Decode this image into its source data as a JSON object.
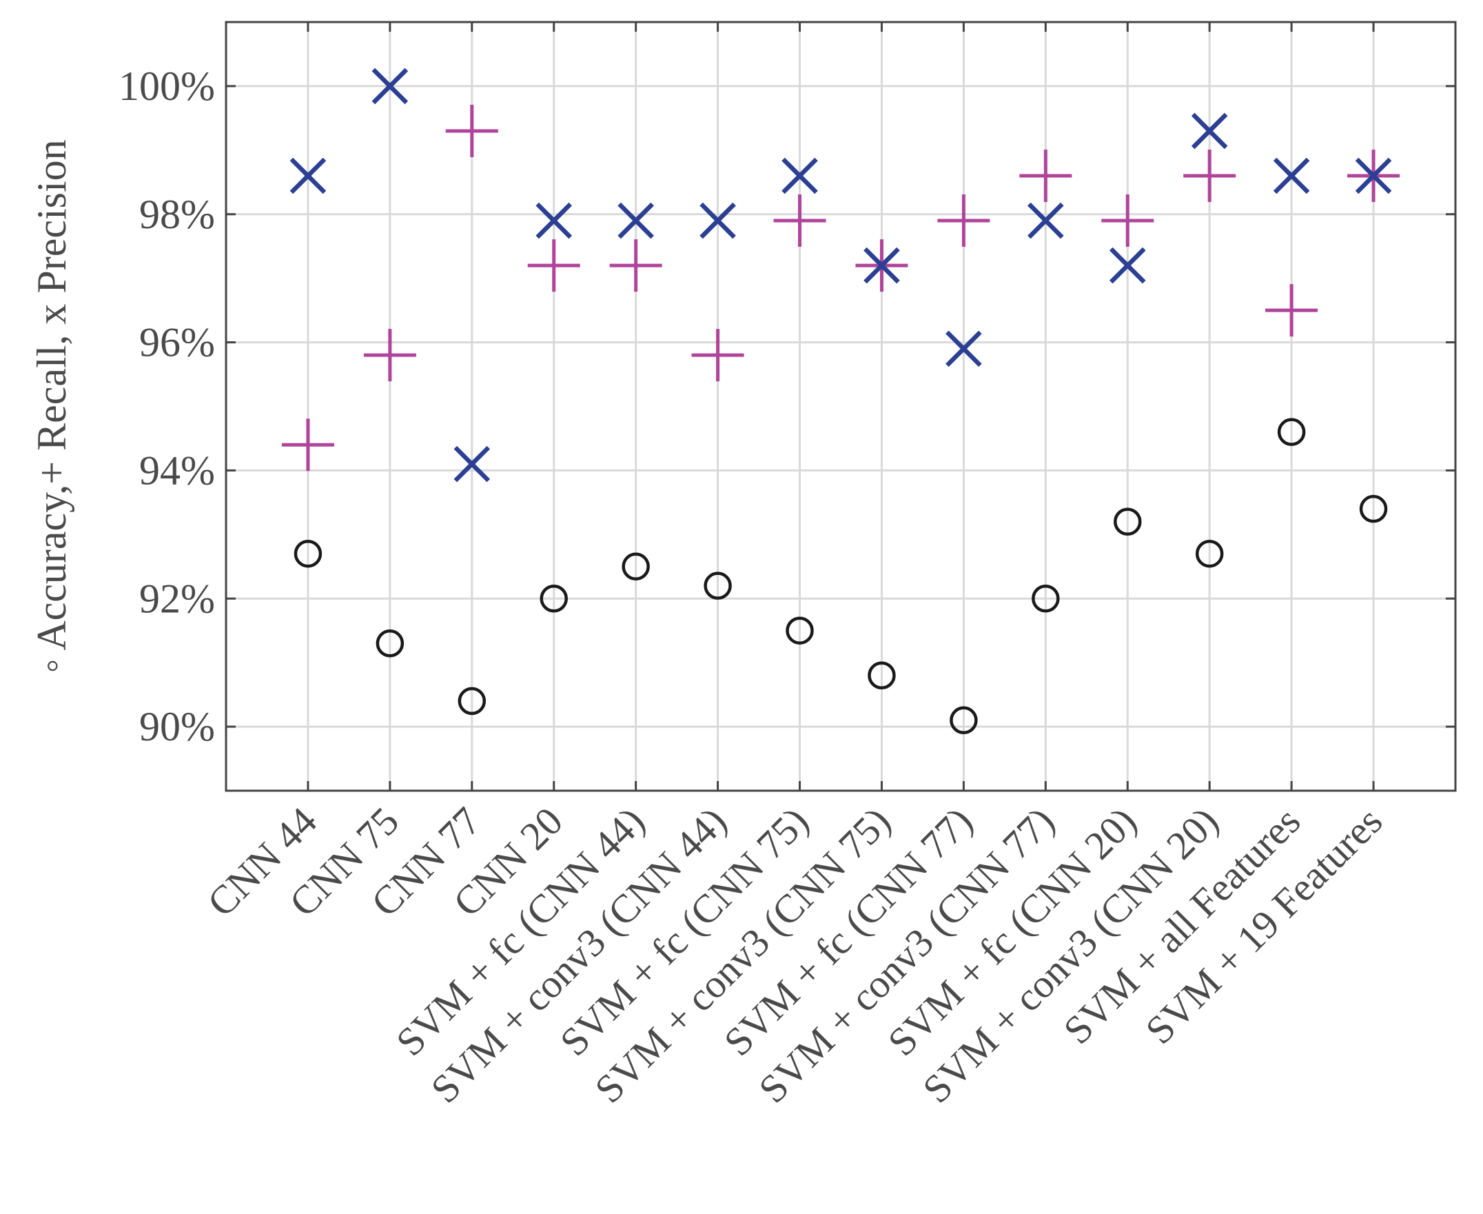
{
  "chart_data": {
    "type": "scatter",
    "ylabel": "◦ Accuracy,+ Recall, x Precision",
    "xlabel": "",
    "ylim": [
      89,
      101
    ],
    "grid": true,
    "yticks": [
      90,
      92,
      94,
      96,
      98,
      100
    ],
    "ytick_labels": [
      "90%",
      "92%",
      "94%",
      "96%",
      "98%",
      "100%"
    ],
    "categories": [
      "CNN 44",
      "CNN 75",
      "CNN 77",
      "CNN 20",
      "SVM + fc (CNN 44)",
      "SVM + conv3 (CNN 44)",
      "SVM + fc (CNN 75)",
      "SVM + conv3 (CNN 75)",
      "SVM + fc (CNN 77)",
      "SVM + conv3 (CNN 77)",
      "SVM + fc (CNN 20)",
      "SVM + conv3 (CNN 20)",
      "SVM + all Features",
      "SVM + 19 Features"
    ],
    "series": [
      {
        "name": "Accuracy",
        "marker": "circle",
        "color": "#1a1a1a",
        "values": [
          92.7,
          91.3,
          90.4,
          92.0,
          92.5,
          92.2,
          91.5,
          90.8,
          90.1,
          92.0,
          93.2,
          92.7,
          94.6,
          93.4
        ]
      },
      {
        "name": "Recall",
        "marker": "plus",
        "color": "#b0449a",
        "values": [
          94.4,
          95.8,
          99.3,
          97.2,
          97.2,
          95.8,
          97.9,
          97.2,
          97.9,
          98.6,
          97.9,
          98.6,
          96.5,
          98.6
        ]
      },
      {
        "name": "Precision",
        "marker": "x",
        "color": "#2b3f94",
        "values": [
          98.6,
          100.0,
          94.1,
          97.9,
          97.9,
          97.9,
          98.6,
          97.2,
          95.9,
          97.9,
          97.2,
          99.3,
          98.6,
          98.6
        ]
      }
    ]
  }
}
